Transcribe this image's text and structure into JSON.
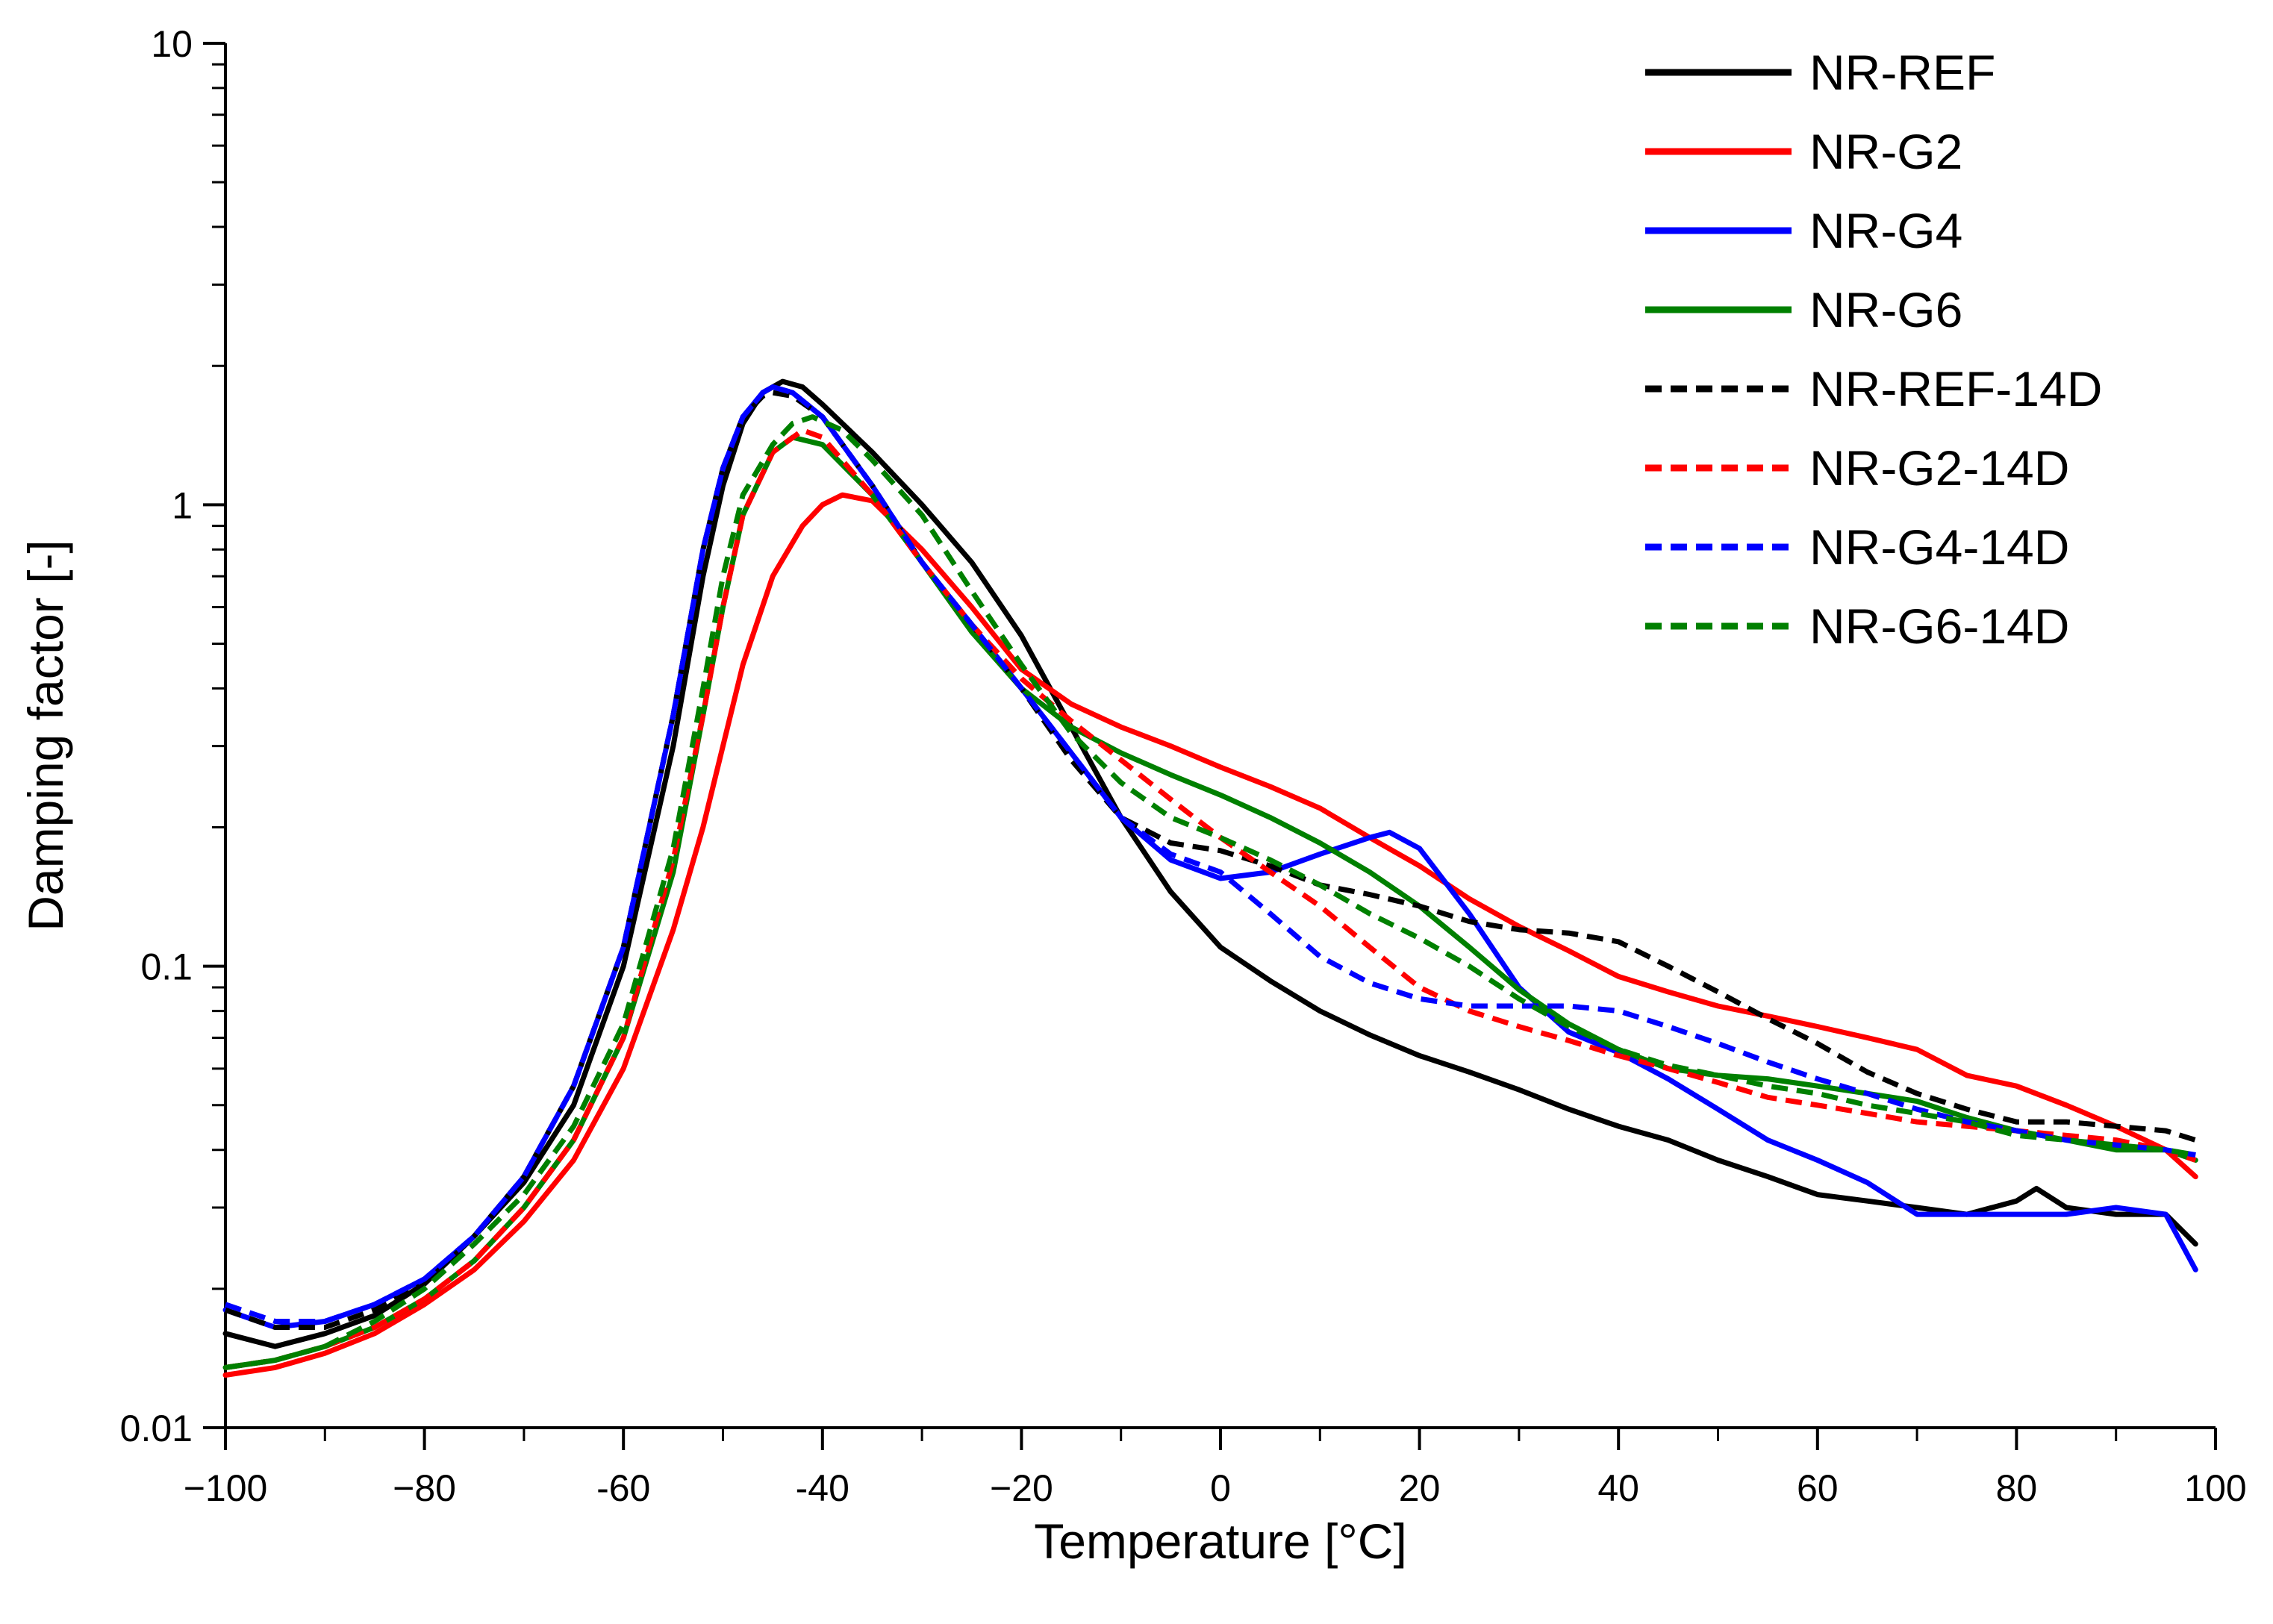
{
  "chart_data": {
    "type": "line",
    "title": "",
    "xlabel": "Temperature [°C]",
    "ylabel": "Damping factor [-]",
    "xlim": [
      -100,
      100
    ],
    "ylim": [
      0.01,
      10
    ],
    "y_scale": "log",
    "x_ticks": [
      -100,
      -80,
      -60,
      -40,
      -20,
      0,
      20,
      40,
      60,
      80,
      100
    ],
    "x_tick_labels": [
      "−100",
      "−80",
      "-60",
      "-40",
      "−20",
      "0",
      "20",
      "40",
      "60",
      "80",
      "100"
    ],
    "y_ticks": [
      0.01,
      0.1,
      1,
      10
    ],
    "y_tick_labels": [
      "0.01",
      "0.1",
      "1",
      "10"
    ],
    "grid": false,
    "legend_position": "top-right",
    "series": [
      {
        "name": "NR-REF",
        "color": "#000000",
        "style": "solid",
        "x": [
          -100,
          -95,
          -90,
          -85,
          -80,
          -75,
          -70,
          -65,
          -60,
          -55,
          -52,
          -50,
          -48,
          -46,
          -44,
          -42,
          -40,
          -35,
          -30,
          -25,
          -20,
          -15,
          -10,
          -5,
          0,
          5,
          10,
          15,
          20,
          25,
          30,
          35,
          40,
          45,
          50,
          55,
          60,
          65,
          70,
          75,
          80,
          82,
          85,
          90,
          95,
          98
        ],
        "y": [
          0.016,
          0.015,
          0.016,
          0.0175,
          0.0205,
          0.026,
          0.034,
          0.05,
          0.1,
          0.3,
          0.7,
          1.1,
          1.5,
          1.75,
          1.85,
          1.8,
          1.65,
          1.3,
          1.0,
          0.75,
          0.52,
          0.33,
          0.21,
          0.145,
          0.11,
          0.093,
          0.08,
          0.071,
          0.064,
          0.059,
          0.054,
          0.049,
          0.045,
          0.042,
          0.038,
          0.035,
          0.032,
          0.031,
          0.03,
          0.029,
          0.031,
          0.033,
          0.03,
          0.029,
          0.029,
          0.025
        ]
      },
      {
        "name": "NR-G2",
        "color": "#ff0000",
        "style": "solid",
        "x": [
          -100,
          -95,
          -90,
          -85,
          -80,
          -75,
          -70,
          -65,
          -60,
          -55,
          -52,
          -50,
          -48,
          -45,
          -42,
          -40,
          -38,
          -35,
          -30,
          -25,
          -20,
          -15,
          -10,
          -5,
          0,
          5,
          10,
          15,
          20,
          25,
          30,
          35,
          40,
          45,
          50,
          55,
          60,
          65,
          70,
          75,
          80,
          85,
          90,
          95,
          98
        ],
        "y": [
          0.013,
          0.0135,
          0.0145,
          0.016,
          0.0185,
          0.022,
          0.028,
          0.038,
          0.06,
          0.12,
          0.2,
          0.3,
          0.45,
          0.7,
          0.9,
          1.0,
          1.05,
          1.02,
          0.8,
          0.6,
          0.44,
          0.37,
          0.33,
          0.3,
          0.27,
          0.245,
          0.22,
          0.19,
          0.165,
          0.14,
          0.122,
          0.108,
          0.095,
          0.088,
          0.082,
          0.078,
          0.074,
          0.07,
          0.066,
          0.058,
          0.055,
          0.05,
          0.045,
          0.04,
          0.035
        ]
      },
      {
        "name": "NR-G4",
        "color": "#0000ff",
        "style": "solid",
        "x": [
          -100,
          -95,
          -90,
          -85,
          -80,
          -75,
          -70,
          -65,
          -60,
          -55,
          -52,
          -50,
          -48,
          -46,
          -45,
          -43,
          -40,
          -35,
          -30,
          -25,
          -20,
          -15,
          -10,
          -5,
          0,
          5,
          10,
          15,
          17,
          20,
          25,
          30,
          35,
          40,
          45,
          50,
          55,
          60,
          65,
          70,
          75,
          80,
          85,
          90,
          95,
          98
        ],
        "y": [
          0.018,
          0.0165,
          0.017,
          0.0185,
          0.021,
          0.026,
          0.035,
          0.055,
          0.11,
          0.35,
          0.8,
          1.2,
          1.55,
          1.75,
          1.8,
          1.75,
          1.55,
          1.1,
          0.75,
          0.55,
          0.4,
          0.29,
          0.21,
          0.17,
          0.155,
          0.16,
          0.175,
          0.19,
          0.195,
          0.18,
          0.13,
          0.09,
          0.072,
          0.065,
          0.057,
          0.049,
          0.042,
          0.038,
          0.034,
          0.029,
          0.029,
          0.029,
          0.029,
          0.03,
          0.029,
          0.022
        ]
      },
      {
        "name": "NR-G6",
        "color": "#008000",
        "style": "solid",
        "x": [
          -100,
          -95,
          -90,
          -85,
          -80,
          -75,
          -70,
          -65,
          -60,
          -55,
          -52,
          -50,
          -48,
          -45,
          -43,
          -40,
          -35,
          -30,
          -25,
          -20,
          -15,
          -10,
          -5,
          0,
          5,
          10,
          15,
          20,
          25,
          30,
          35,
          40,
          45,
          50,
          55,
          60,
          65,
          70,
          75,
          80,
          85,
          90,
          95,
          98
        ],
        "y": [
          0.0135,
          0.014,
          0.015,
          0.0165,
          0.019,
          0.023,
          0.03,
          0.042,
          0.07,
          0.16,
          0.35,
          0.6,
          0.95,
          1.3,
          1.4,
          1.35,
          1.05,
          0.75,
          0.53,
          0.4,
          0.33,
          0.29,
          0.26,
          0.235,
          0.21,
          0.185,
          0.16,
          0.135,
          0.11,
          0.089,
          0.075,
          0.066,
          0.06,
          0.058,
          0.057,
          0.055,
          0.053,
          0.051,
          0.047,
          0.044,
          0.042,
          0.04,
          0.04,
          0.038
        ]
      },
      {
        "name": "NR-REF-14D",
        "color": "#000000",
        "style": "dashed",
        "x": [
          -100,
          -95,
          -90,
          -85,
          -80,
          -75,
          -70,
          -65,
          -60,
          -55,
          -52,
          -50,
          -48,
          -46,
          -45,
          -43,
          -40,
          -35,
          -30,
          -25,
          -20,
          -15,
          -10,
          -5,
          0,
          5,
          10,
          15,
          20,
          25,
          30,
          35,
          40,
          45,
          50,
          55,
          60,
          65,
          70,
          75,
          80,
          85,
          90,
          95,
          98
        ],
        "y": [
          0.018,
          0.0165,
          0.0165,
          0.018,
          0.0205,
          0.026,
          0.035,
          0.055,
          0.11,
          0.35,
          0.8,
          1.2,
          1.55,
          1.72,
          1.75,
          1.72,
          1.55,
          1.1,
          0.75,
          0.55,
          0.4,
          0.28,
          0.21,
          0.185,
          0.178,
          0.165,
          0.15,
          0.143,
          0.135,
          0.125,
          0.12,
          0.118,
          0.113,
          0.1,
          0.088,
          0.077,
          0.068,
          0.059,
          0.053,
          0.049,
          0.046,
          0.046,
          0.045,
          0.044,
          0.042
        ]
      },
      {
        "name": "NR-G2-14D",
        "color": "#ff0000",
        "style": "dashed",
        "x": [
          -100,
          -95,
          -90,
          -85,
          -80,
          -75,
          -70,
          -65,
          -60,
          -55,
          -52,
          -50,
          -48,
          -45,
          -42,
          -40,
          -35,
          -30,
          -25,
          -20,
          -15,
          -10,
          -5,
          0,
          5,
          10,
          15,
          20,
          25,
          30,
          35,
          40,
          45,
          50,
          55,
          60,
          65,
          70,
          75,
          80,
          85,
          90,
          95,
          98
        ],
        "y": [
          0.0135,
          0.014,
          0.015,
          0.0165,
          0.019,
          0.023,
          0.03,
          0.042,
          0.07,
          0.17,
          0.35,
          0.6,
          0.95,
          1.3,
          1.45,
          1.4,
          1.05,
          0.75,
          0.55,
          0.42,
          0.34,
          0.28,
          0.23,
          0.19,
          0.16,
          0.135,
          0.11,
          0.09,
          0.08,
          0.074,
          0.069,
          0.064,
          0.06,
          0.056,
          0.052,
          0.05,
          0.048,
          0.046,
          0.045,
          0.044,
          0.043,
          0.042,
          0.04,
          0.038
        ]
      },
      {
        "name": "NR-G4-14D",
        "color": "#0000ff",
        "style": "dashed",
        "x": [
          -100,
          -95,
          -90,
          -85,
          -80,
          -75,
          -70,
          -65,
          -60,
          -55,
          -52,
          -50,
          -48,
          -46,
          -45,
          -43,
          -40,
          -35,
          -30,
          -25,
          -20,
          -15,
          -10,
          -5,
          0,
          5,
          10,
          15,
          20,
          25,
          30,
          35,
          40,
          45,
          50,
          55,
          60,
          65,
          70,
          75,
          80,
          85,
          90,
          95,
          98
        ],
        "y": [
          0.0185,
          0.017,
          0.017,
          0.0185,
          0.021,
          0.026,
          0.035,
          0.055,
          0.11,
          0.35,
          0.8,
          1.2,
          1.55,
          1.75,
          1.8,
          1.75,
          1.55,
          1.1,
          0.75,
          0.55,
          0.4,
          0.29,
          0.21,
          0.175,
          0.16,
          0.13,
          0.105,
          0.092,
          0.085,
          0.082,
          0.082,
          0.082,
          0.08,
          0.074,
          0.068,
          0.062,
          0.057,
          0.053,
          0.049,
          0.046,
          0.044,
          0.042,
          0.041,
          0.04,
          0.039
        ]
      },
      {
        "name": "NR-G6-14D",
        "color": "#008000",
        "style": "dashed",
        "x": [
          -100,
          -95,
          -90,
          -85,
          -80,
          -75,
          -70,
          -65,
          -60,
          -55,
          -52,
          -50,
          -48,
          -45,
          -43,
          -41,
          -38,
          -35,
          -30,
          -25,
          -20,
          -15,
          -10,
          -5,
          0,
          5,
          10,
          15,
          20,
          25,
          30,
          35,
          40,
          45,
          50,
          55,
          60,
          65,
          70,
          75,
          80,
          85,
          90,
          95,
          98
        ],
        "y": [
          0.0135,
          0.014,
          0.015,
          0.017,
          0.02,
          0.025,
          0.032,
          0.045,
          0.075,
          0.18,
          0.4,
          0.7,
          1.05,
          1.35,
          1.5,
          1.55,
          1.45,
          1.25,
          0.95,
          0.65,
          0.45,
          0.32,
          0.25,
          0.21,
          0.19,
          0.17,
          0.15,
          0.13,
          0.115,
          0.1,
          0.085,
          0.074,
          0.066,
          0.061,
          0.058,
          0.055,
          0.053,
          0.05,
          0.048,
          0.046,
          0.043,
          0.042,
          0.041,
          0.04,
          0.039
        ]
      }
    ]
  }
}
